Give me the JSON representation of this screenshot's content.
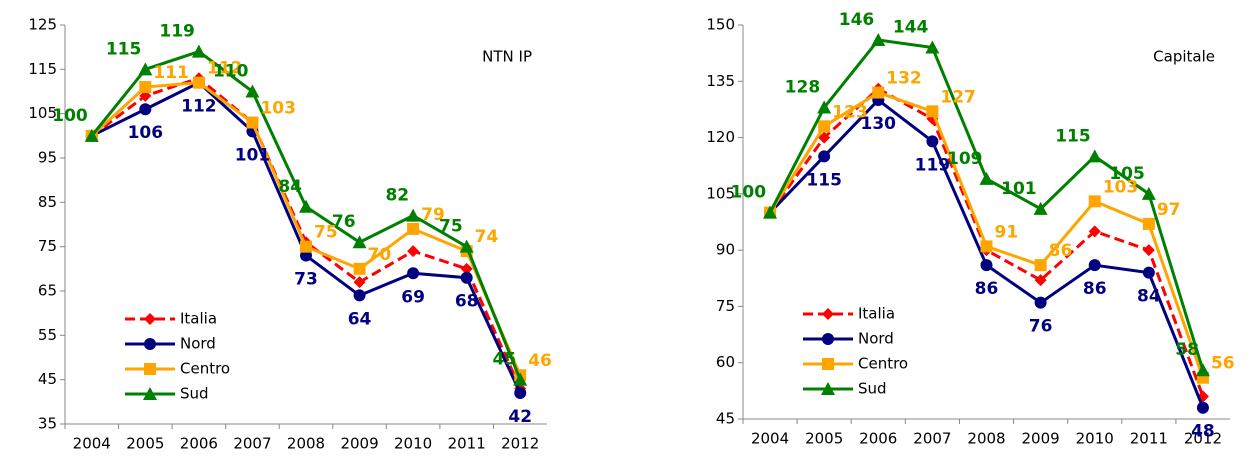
{
  "chart_data": [
    {
      "type": "line",
      "title": "NTN IP",
      "categories": [
        "2004",
        "2005",
        "2006",
        "2007",
        "2008",
        "2009",
        "2010",
        "2011",
        "2012"
      ],
      "ylim": [
        35,
        125
      ],
      "yticks": [
        35,
        45,
        55,
        65,
        75,
        85,
        95,
        105,
        115,
        125
      ],
      "legend": "lower left",
      "series": [
        {
          "name": "Italia",
          "color": "#ff0000",
          "marker": "diamond",
          "linestyle": "dashed",
          "values": [
            100,
            109,
            113,
            103,
            76,
            67,
            74,
            70,
            43
          ]
        },
        {
          "name": "Nord",
          "color": "#000080",
          "marker": "circle",
          "linestyle": "solid",
          "values": [
            100,
            106,
            112,
            101,
            73,
            64,
            69,
            68,
            42
          ],
          "value_labels": [
            null,
            106,
            112,
            101,
            73,
            64,
            69,
            68,
            42
          ]
        },
        {
          "name": "Centro",
          "color": "#ffa500",
          "marker": "square",
          "linestyle": "solid",
          "values": [
            100,
            111,
            112,
            103,
            75,
            70,
            79,
            74,
            46
          ],
          "value_labels": [
            null,
            111,
            112,
            103,
            75,
            70,
            79,
            74,
            46
          ]
        },
        {
          "name": "Sud",
          "color": "#008000",
          "marker": "triangle",
          "linestyle": "solid",
          "values": [
            100,
            115,
            119,
            110,
            84,
            76,
            82,
            75,
            45
          ],
          "value_labels": [
            100,
            115,
            119,
            110,
            84,
            76,
            82,
            75,
            45
          ]
        }
      ]
    },
    {
      "type": "line",
      "title": "Capitale",
      "categories": [
        "2004",
        "2005",
        "2006",
        "2007",
        "2008",
        "2009",
        "2010",
        "2011",
        "2012"
      ],
      "ylim": [
        45,
        150
      ],
      "yticks": [
        45,
        60,
        75,
        90,
        105,
        120,
        135,
        150
      ],
      "legend": "lower left",
      "series": [
        {
          "name": "Italia",
          "color": "#ff0000",
          "marker": "diamond",
          "linestyle": "dashed",
          "values": [
            100,
            120,
            133,
            125,
            90,
            82,
            95,
            90,
            51
          ]
        },
        {
          "name": "Nord",
          "color": "#000080",
          "marker": "circle",
          "linestyle": "solid",
          "values": [
            100,
            115,
            130,
            119,
            86,
            76,
            86,
            84,
            48
          ],
          "value_labels": [
            null,
            115,
            130,
            119,
            86,
            76,
            86,
            84,
            48
          ]
        },
        {
          "name": "Centro",
          "color": "#ffa500",
          "marker": "square",
          "linestyle": "solid",
          "values": [
            100,
            123,
            132,
            127,
            91,
            86,
            103,
            97,
            56
          ],
          "value_labels": [
            null,
            123,
            132,
            127,
            91,
            86,
            103,
            97,
            56
          ]
        },
        {
          "name": "Sud",
          "color": "#008000",
          "marker": "triangle",
          "linestyle": "solid",
          "values": [
            100,
            128,
            146,
            144,
            109,
            101,
            115,
            105,
            58
          ],
          "value_labels": [
            100,
            128,
            146,
            144,
            109,
            101,
            115,
            105,
            58
          ]
        }
      ]
    }
  ]
}
